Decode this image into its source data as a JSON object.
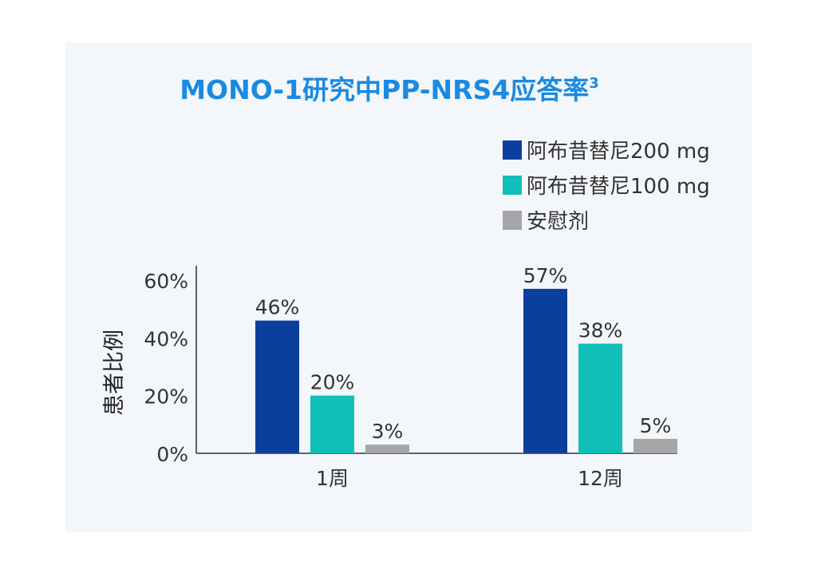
{
  "chart_data": {
    "type": "bar",
    "title": "MONO-1研究中PP-NRS4应答率",
    "title_superscript": "3",
    "ylabel": "患者比例",
    "xlabel": "",
    "categories": [
      "1周",
      "12周"
    ],
    "ylim": [
      0,
      65
    ],
    "yticks": [
      0,
      20,
      40,
      60
    ],
    "ytick_labels": [
      "0%",
      "20%",
      "40%",
      "60%"
    ],
    "grid": false,
    "legend_position": "top-right",
    "series": [
      {
        "name": "阿布昔替尼200 mg",
        "values": [
          46,
          57
        ],
        "labels": [
          "46%",
          "57%"
        ],
        "color": "#0b3f9e"
      },
      {
        "name": "阿布昔替尼100 mg",
        "values": [
          20,
          38
        ],
        "labels": [
          "20%",
          "38%"
        ],
        "color": "#0fbfb8"
      },
      {
        "name": "安慰剂",
        "values": [
          3,
          5
        ],
        "labels": [
          "3%",
          "5%"
        ],
        "color": "#a6a6a6"
      }
    ],
    "colors": {
      "title": "#1b8ae0",
      "text": "#333333",
      "axis": "#333333"
    }
  }
}
